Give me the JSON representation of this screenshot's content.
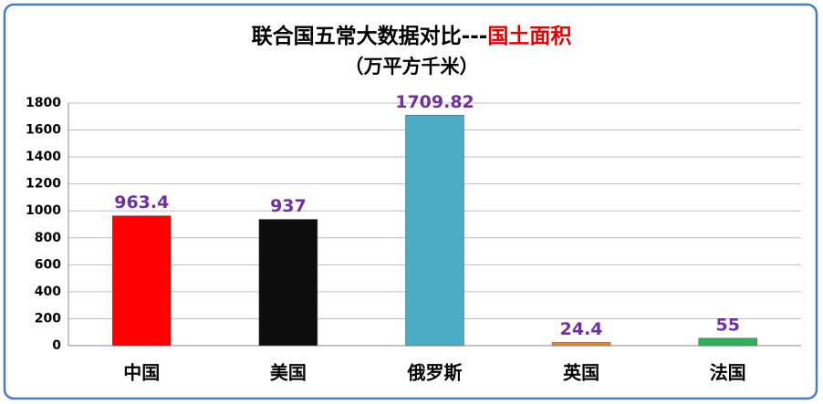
{
  "chart_data": {
    "type": "bar",
    "title_parts": [
      {
        "text": "联合国五常大数据对比---",
        "color": "#000000"
      },
      {
        "text": "国土面积",
        "color": "#e00000"
      }
    ],
    "subtitle": "（万平方千米）",
    "categories": [
      "中国",
      "美国",
      "俄罗斯",
      "英国",
      "法国"
    ],
    "values": [
      963.4,
      937,
      1709.82,
      24.4,
      55
    ],
    "colors": [
      "#ff0000",
      "#0d0d0d",
      "#4bacc6",
      "#e2873a",
      "#2fb05a"
    ],
    "ylim": [
      0,
      1800
    ],
    "yticks": [
      0,
      200,
      400,
      600,
      800,
      1000,
      1200,
      1400,
      1600,
      1800
    ],
    "grid": true
  }
}
